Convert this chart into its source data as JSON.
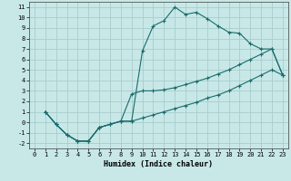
{
  "xlabel": "Humidex (Indice chaleur)",
  "bg_color": "#c8e8e8",
  "grid_color": "#a8cccc",
  "line_color": "#1a6b6b",
  "xlim": [
    -0.5,
    23.5
  ],
  "ylim": [
    -2.5,
    11.5
  ],
  "xticks": [
    0,
    1,
    2,
    3,
    4,
    5,
    6,
    7,
    8,
    9,
    10,
    11,
    12,
    13,
    14,
    15,
    16,
    17,
    18,
    19,
    20,
    21,
    22,
    23
  ],
  "yticks": [
    -2,
    -1,
    0,
    1,
    2,
    3,
    4,
    5,
    6,
    7,
    8,
    9,
    10,
    11
  ],
  "line1_x": [
    1,
    2,
    3,
    4,
    5,
    6,
    7,
    8,
    9,
    10,
    11,
    12,
    13,
    14,
    15,
    16,
    17,
    18,
    19,
    20,
    21,
    22,
    23
  ],
  "line1_y": [
    1.0,
    -0.2,
    -1.2,
    -1.8,
    -1.8,
    -0.5,
    -0.2,
    0.1,
    0.1,
    6.8,
    9.2,
    9.7,
    11.0,
    10.3,
    10.5,
    9.9,
    9.2,
    8.6,
    8.5,
    7.5,
    7.0,
    7.0,
    4.5
  ],
  "line2_x": [
    1,
    2,
    3,
    4,
    5,
    6,
    7,
    8,
    9,
    10,
    11,
    12,
    13,
    14,
    15,
    16,
    17,
    18,
    19,
    20,
    21,
    22,
    23
  ],
  "line2_y": [
    1.0,
    -0.2,
    -1.2,
    -1.8,
    -1.8,
    -0.5,
    -0.2,
    0.1,
    2.7,
    3.0,
    3.0,
    3.1,
    3.3,
    3.6,
    3.9,
    4.2,
    4.6,
    5.0,
    5.5,
    6.0,
    6.5,
    7.0,
    4.5
  ],
  "line3_x": [
    1,
    2,
    3,
    4,
    5,
    6,
    7,
    8,
    9,
    10,
    11,
    12,
    13,
    14,
    15,
    16,
    17,
    18,
    19,
    20,
    21,
    22,
    23
  ],
  "line3_y": [
    1.0,
    -0.2,
    -1.2,
    -1.8,
    -1.8,
    -0.5,
    -0.2,
    0.1,
    0.1,
    0.4,
    0.7,
    1.0,
    1.3,
    1.6,
    1.9,
    2.3,
    2.6,
    3.0,
    3.5,
    4.0,
    4.5,
    5.0,
    4.5
  ],
  "tick_fontsize": 5.0,
  "xlabel_fontsize": 6.0
}
